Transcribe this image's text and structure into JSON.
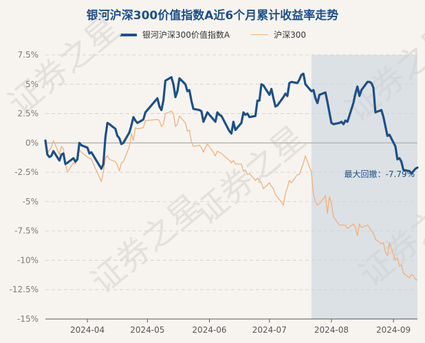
{
  "colors": {
    "fund": "#1e4f85",
    "index": "#f0b07a",
    "grid": "#d6d3cf",
    "drawdown": "#c7d2dc",
    "axis_text": "#7a7a7a",
    "watermark": "#e4e0dc"
  },
  "watermark": "证券之星",
  "chart_data": {
    "type": "line",
    "title": "银河沪深300价值指数A近6个月累计收益率走势",
    "ylim": [
      -15,
      7.5
    ],
    "y_ticks": [
      7.5,
      5,
      2.5,
      0,
      -2.5,
      -5,
      -7.5,
      -10,
      -12.5,
      -15
    ],
    "y_tick_labels": [
      "7.5%",
      "5%",
      "2.5%",
      "0%",
      "-2.5%",
      "-5%",
      "-7.5%",
      "-10%",
      "-12.5%",
      "-15%"
    ],
    "x_range": [
      "2024-03-11",
      "2024-09-13"
    ],
    "x_ticks": [
      "2024-04-01",
      "2024-05-01",
      "2024-06-01",
      "2024-07-01",
      "2024-08-01",
      "2024-09-01"
    ],
    "x_tick_labels": [
      "2024-04",
      "2024-05",
      "2024-06",
      "2024-07",
      "2024-08",
      "2024-09"
    ],
    "grid": true,
    "legend_position": "top",
    "drawdown": {
      "start": "2024-07-22",
      "end": "2024-09-13",
      "label": "最大回撤：-7.79%"
    },
    "series": [
      {
        "name": "银河沪深300价值指数A",
        "points": [
          [
            "2024-03-11",
            0.2
          ],
          [
            "2024-03-12",
            -1.0
          ],
          [
            "2024-03-13",
            -1.2
          ],
          [
            "2024-03-14",
            -1.1
          ],
          [
            "2024-03-15",
            -0.7
          ],
          [
            "2024-03-18",
            -1.5
          ],
          [
            "2024-03-19",
            -1.0
          ],
          [
            "2024-03-20",
            -0.9
          ],
          [
            "2024-03-21",
            -1.8
          ],
          [
            "2024-03-22",
            -1.7
          ],
          [
            "2024-03-25",
            -1.3
          ],
          [
            "2024-03-26",
            -1.6
          ],
          [
            "2024-03-27",
            -1.4
          ],
          [
            "2024-03-28",
            0.0
          ],
          [
            "2024-03-29",
            -0.2
          ],
          [
            "2024-04-01",
            -0.4
          ],
          [
            "2024-04-02",
            -0.9
          ],
          [
            "2024-04-03",
            -0.8
          ],
          [
            "2024-04-08",
            -2.2
          ],
          [
            "2024-04-09",
            -1.8
          ],
          [
            "2024-04-10",
            0.5
          ],
          [
            "2024-04-11",
            1.7
          ],
          [
            "2024-04-12",
            1.6
          ],
          [
            "2024-04-15",
            1.2
          ],
          [
            "2024-04-16",
            0.6
          ],
          [
            "2024-04-17",
            0.4
          ],
          [
            "2024-04-18",
            -0.1
          ],
          [
            "2024-04-19",
            0.0
          ],
          [
            "2024-04-22",
            0.9
          ],
          [
            "2024-04-23",
            1.5
          ],
          [
            "2024-04-24",
            2.2
          ],
          [
            "2024-04-25",
            1.9
          ],
          [
            "2024-04-26",
            1.7
          ],
          [
            "2024-04-29",
            2.0
          ],
          [
            "2024-04-30",
            2.6
          ],
          [
            "2024-05-06",
            3.8
          ],
          [
            "2024-05-07",
            3.1
          ],
          [
            "2024-05-08",
            2.8
          ],
          [
            "2024-05-09",
            3.6
          ],
          [
            "2024-05-10",
            5.3
          ],
          [
            "2024-05-13",
            5.6
          ],
          [
            "2024-05-14",
            5.0
          ],
          [
            "2024-05-15",
            3.9
          ],
          [
            "2024-05-16",
            4.4
          ],
          [
            "2024-05-17",
            5.5
          ],
          [
            "2024-05-20",
            5.0
          ],
          [
            "2024-05-21",
            4.4
          ],
          [
            "2024-05-22",
            4.5
          ],
          [
            "2024-05-23",
            3.6
          ],
          [
            "2024-05-24",
            2.9
          ],
          [
            "2024-05-27",
            2.8
          ],
          [
            "2024-05-28",
            2.7
          ],
          [
            "2024-05-29",
            1.8
          ],
          [
            "2024-05-30",
            2.2
          ],
          [
            "2024-05-31",
            2.6
          ],
          [
            "2024-06-03",
            2.0
          ],
          [
            "2024-06-04",
            1.8
          ],
          [
            "2024-06-05",
            2.6
          ],
          [
            "2024-06-06",
            2.4
          ],
          [
            "2024-06-07",
            2.3
          ],
          [
            "2024-06-11",
            1.0
          ],
          [
            "2024-06-12",
            0.8
          ],
          [
            "2024-06-13",
            1.8
          ],
          [
            "2024-06-14",
            1.1
          ],
          [
            "2024-06-17",
            1.7
          ],
          [
            "2024-06-18",
            2.6
          ],
          [
            "2024-06-19",
            2.4
          ],
          [
            "2024-06-20",
            2.5
          ],
          [
            "2024-06-21",
            2.2
          ],
          [
            "2024-06-24",
            2.3
          ],
          [
            "2024-06-25",
            3.6
          ],
          [
            "2024-06-26",
            3.6
          ],
          [
            "2024-06-27",
            5.0
          ],
          [
            "2024-06-28",
            4.9
          ],
          [
            "2024-07-01",
            4.1
          ],
          [
            "2024-07-02",
            4.6
          ],
          [
            "2024-07-03",
            3.8
          ],
          [
            "2024-07-04",
            3.1
          ],
          [
            "2024-07-05",
            3.2
          ],
          [
            "2024-07-08",
            3.9
          ],
          [
            "2024-07-09",
            4.2
          ],
          [
            "2024-07-10",
            4.0
          ],
          [
            "2024-07-11",
            5.1
          ],
          [
            "2024-07-12",
            5.2
          ],
          [
            "2024-07-15",
            5.1
          ],
          [
            "2024-07-16",
            5.4
          ],
          [
            "2024-07-17",
            5.8
          ],
          [
            "2024-07-18",
            5.9
          ],
          [
            "2024-07-19",
            5.0
          ],
          [
            "2024-07-22",
            4.4
          ],
          [
            "2024-07-23",
            4.5
          ],
          [
            "2024-07-24",
            3.8
          ],
          [
            "2024-07-25",
            3.4
          ],
          [
            "2024-07-26",
            4.1
          ],
          [
            "2024-07-29",
            4.3
          ],
          [
            "2024-07-30",
            3.5
          ],
          [
            "2024-07-31",
            2.6
          ],
          [
            "2024-08-01",
            1.7
          ],
          [
            "2024-08-02",
            1.6
          ],
          [
            "2024-08-05",
            1.7
          ],
          [
            "2024-08-06",
            1.8
          ],
          [
            "2024-08-07",
            1.6
          ],
          [
            "2024-08-08",
            1.9
          ],
          [
            "2024-08-09",
            1.8
          ],
          [
            "2024-08-12",
            3.4
          ],
          [
            "2024-08-13",
            4.2
          ],
          [
            "2024-08-14",
            4.8
          ],
          [
            "2024-08-15",
            4.0
          ],
          [
            "2024-08-16",
            4.5
          ],
          [
            "2024-08-19",
            5.2
          ],
          [
            "2024-08-20",
            5.2
          ],
          [
            "2024-08-21",
            5.1
          ],
          [
            "2024-08-22",
            4.7
          ],
          [
            "2024-08-23",
            2.6
          ],
          [
            "2024-08-26",
            2.8
          ],
          [
            "2024-08-27",
            2.2
          ],
          [
            "2024-08-28",
            1.4
          ],
          [
            "2024-08-29",
            0.6
          ],
          [
            "2024-08-30",
            0.7
          ],
          [
            "2024-09-02",
            -0.3
          ],
          [
            "2024-09-03",
            -1.4
          ],
          [
            "2024-09-04",
            -1.3
          ],
          [
            "2024-09-05",
            -1.6
          ],
          [
            "2024-09-06",
            -2.3
          ],
          [
            "2024-09-09",
            -2.4
          ],
          [
            "2024-09-10",
            -2.6
          ],
          [
            "2024-09-11",
            -2.4
          ],
          [
            "2024-09-12",
            -2.2
          ],
          [
            "2024-09-13",
            -2.1
          ]
        ]
      },
      {
        "name": "沪深300",
        "points": [
          [
            "2024-03-11",
            0.2
          ],
          [
            "2024-03-12",
            -0.9
          ],
          [
            "2024-03-13",
            -0.6
          ],
          [
            "2024-03-14",
            -0.4
          ],
          [
            "2024-03-15",
            0.2
          ],
          [
            "2024-03-18",
            -1.0
          ],
          [
            "2024-03-19",
            -0.3
          ],
          [
            "2024-03-20",
            -0.5
          ],
          [
            "2024-03-21",
            -1.8
          ],
          [
            "2024-03-22",
            -2.5
          ],
          [
            "2024-03-25",
            -1.7
          ],
          [
            "2024-03-26",
            -1.8
          ],
          [
            "2024-03-27",
            -1.3
          ],
          [
            "2024-03-28",
            -0.6
          ],
          [
            "2024-03-29",
            -0.8
          ],
          [
            "2024-04-01",
            -1.2
          ],
          [
            "2024-04-02",
            -1.3
          ],
          [
            "2024-04-03",
            -1.4
          ],
          [
            "2024-04-08",
            -3.3
          ],
          [
            "2024-04-09",
            -2.5
          ],
          [
            "2024-04-10",
            -1.3
          ],
          [
            "2024-04-11",
            -1.1
          ],
          [
            "2024-04-12",
            -1.4
          ],
          [
            "2024-04-15",
            -1.6
          ],
          [
            "2024-04-16",
            -1.9
          ],
          [
            "2024-04-17",
            -2.4
          ],
          [
            "2024-04-18",
            -1.7
          ],
          [
            "2024-04-19",
            -1.6
          ],
          [
            "2024-04-22",
            -0.3
          ],
          [
            "2024-04-23",
            0.8
          ],
          [
            "2024-04-24",
            0.2
          ],
          [
            "2024-04-25",
            1.3
          ],
          [
            "2024-04-26",
            1.2
          ],
          [
            "2024-04-29",
            1.3
          ],
          [
            "2024-04-30",
            1.9
          ],
          [
            "2024-05-06",
            2.0
          ],
          [
            "2024-05-07",
            1.9
          ],
          [
            "2024-05-08",
            1.4
          ],
          [
            "2024-05-09",
            1.6
          ],
          [
            "2024-05-10",
            2.5
          ],
          [
            "2024-05-13",
            2.7
          ],
          [
            "2024-05-14",
            2.5
          ],
          [
            "2024-05-15",
            1.4
          ],
          [
            "2024-05-16",
            1.6
          ],
          [
            "2024-05-17",
            2.3
          ],
          [
            "2024-05-20",
            1.7
          ],
          [
            "2024-05-21",
            1.0
          ],
          [
            "2024-05-22",
            1.1
          ],
          [
            "2024-05-23",
            0.1
          ],
          [
            "2024-05-24",
            -0.3
          ],
          [
            "2024-05-27",
            -0.2
          ],
          [
            "2024-05-28",
            -0.4
          ],
          [
            "2024-05-29",
            -0.8
          ],
          [
            "2024-05-30",
            -0.4
          ],
          [
            "2024-05-31",
            -0.1
          ],
          [
            "2024-06-03",
            -0.8
          ],
          [
            "2024-06-04",
            -1.1
          ],
          [
            "2024-06-05",
            -0.7
          ],
          [
            "2024-06-06",
            -0.8
          ],
          [
            "2024-06-07",
            -0.9
          ],
          [
            "2024-06-11",
            -1.5
          ],
          [
            "2024-06-12",
            -1.7
          ],
          [
            "2024-06-13",
            -1.5
          ],
          [
            "2024-06-14",
            -1.8
          ],
          [
            "2024-06-17",
            -1.8
          ],
          [
            "2024-06-18",
            -2.4
          ],
          [
            "2024-06-19",
            -2.3
          ],
          [
            "2024-06-20",
            -2.7
          ],
          [
            "2024-06-21",
            -2.6
          ],
          [
            "2024-06-24",
            -3.2
          ],
          [
            "2024-06-25",
            -3.0
          ],
          [
            "2024-06-26",
            -3.2
          ],
          [
            "2024-06-27",
            -3.4
          ],
          [
            "2024-06-28",
            -3.9
          ],
          [
            "2024-07-01",
            -3.4
          ],
          [
            "2024-07-02",
            -3.7
          ],
          [
            "2024-07-03",
            -3.9
          ],
          [
            "2024-07-04",
            -4.4
          ],
          [
            "2024-07-05",
            -4.6
          ],
          [
            "2024-07-08",
            -5.3
          ],
          [
            "2024-07-09",
            -4.3
          ],
          [
            "2024-07-10",
            -3.8
          ],
          [
            "2024-07-11",
            -3.2
          ],
          [
            "2024-07-12",
            -3.4
          ],
          [
            "2024-07-15",
            -2.7
          ],
          [
            "2024-07-16",
            -2.7
          ],
          [
            "2024-07-17",
            -2.2
          ],
          [
            "2024-07-18",
            -1.7
          ],
          [
            "2024-07-19",
            -1.1
          ],
          [
            "2024-07-22",
            -2.5
          ],
          [
            "2024-07-23",
            -4.4
          ],
          [
            "2024-07-24",
            -5.0
          ],
          [
            "2024-07-25",
            -5.3
          ],
          [
            "2024-07-26",
            -5.2
          ],
          [
            "2024-07-29",
            -4.5
          ],
          [
            "2024-07-30",
            -6.0
          ],
          [
            "2024-07-31",
            -4.6
          ],
          [
            "2024-08-01",
            -5.1
          ],
          [
            "2024-08-02",
            -6.3
          ],
          [
            "2024-08-05",
            -7.0
          ],
          [
            "2024-08-06",
            -7.0
          ],
          [
            "2024-08-07",
            -7.0
          ],
          [
            "2024-08-08",
            -7.0
          ],
          [
            "2024-08-09",
            -7.3
          ],
          [
            "2024-08-12",
            -6.9
          ],
          [
            "2024-08-13",
            -7.2
          ],
          [
            "2024-08-14",
            -7.9
          ],
          [
            "2024-08-15",
            -6.9
          ],
          [
            "2024-08-16",
            -7.2
          ],
          [
            "2024-08-19",
            -7.0
          ],
          [
            "2024-08-20",
            -7.2
          ],
          [
            "2024-08-21",
            -7.5
          ],
          [
            "2024-08-22",
            -7.7
          ],
          [
            "2024-08-23",
            -8.2
          ],
          [
            "2024-08-26",
            -8.6
          ],
          [
            "2024-08-27",
            -8.5
          ],
          [
            "2024-08-28",
            -9.3
          ],
          [
            "2024-08-29",
            -9.6
          ],
          [
            "2024-08-30",
            -8.5
          ],
          [
            "2024-09-02",
            -10.0
          ],
          [
            "2024-09-03",
            -9.8
          ],
          [
            "2024-09-04",
            -10.5
          ],
          [
            "2024-09-05",
            -10.4
          ],
          [
            "2024-09-06",
            -11.1
          ],
          [
            "2024-09-09",
            -11.5
          ],
          [
            "2024-09-10",
            -11.2
          ],
          [
            "2024-09-11",
            -11.3
          ],
          [
            "2024-09-12",
            -11.6
          ],
          [
            "2024-09-13",
            -11.7
          ]
        ]
      }
    ]
  }
}
